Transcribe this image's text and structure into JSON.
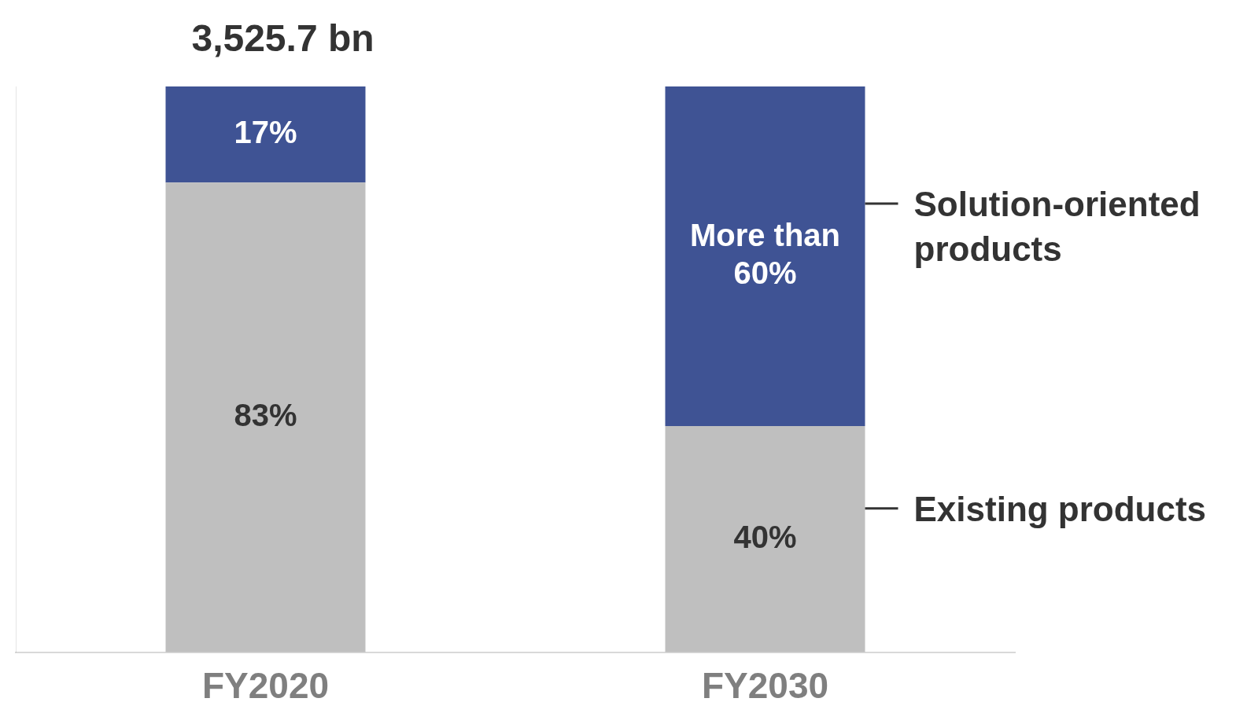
{
  "chart_data": {
    "type": "bar",
    "stacked": true,
    "tick_labels": "x",
    "grid": false,
    "legend": false,
    "categories": [
      "FY2020",
      "FY2030"
    ],
    "ylim": [
      0,
      100
    ],
    "series": [
      {
        "name": "Existing products",
        "color": "#bfbfbf",
        "values": [
          83,
          40
        ],
        "value_labels": [
          "83%",
          "40%"
        ]
      },
      {
        "name": "Solution-oriented products",
        "color": "#3f5394",
        "values": [
          17,
          60
        ],
        "value_labels": [
          "17%",
          "More than 60%"
        ]
      }
    ],
    "annotations": [
      {
        "text": "3,525.7 bn",
        "x": "FY2020",
        "y": 100
      }
    ]
  }
}
